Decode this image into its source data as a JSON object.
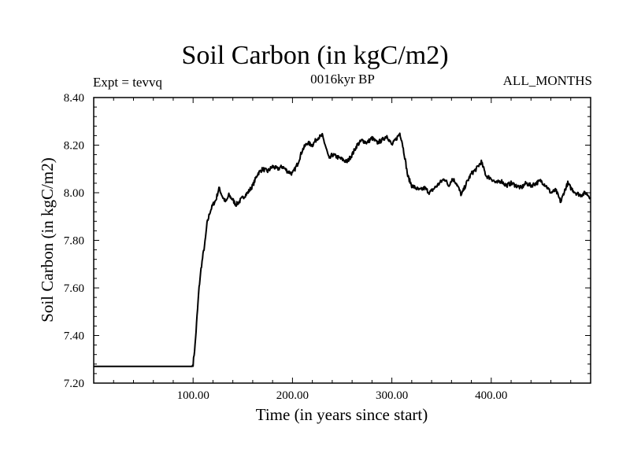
{
  "chart_data": {
    "type": "line",
    "title": "Soil Carbon (in kgC/m2)",
    "subtitle_left": "Expt = tevvq",
    "subtitle_center": "0016kyr BP",
    "subtitle_right": "ALL_MONTHS",
    "xlabel": "Time (in years since start)",
    "ylabel": "Soil Carbon (in kgC/m2)",
    "xlim": [
      0,
      500
    ],
    "ylim": [
      7.2,
      8.4
    ],
    "x_ticks": [
      {
        "value": 100,
        "label": "100.00"
      },
      {
        "value": 200,
        "label": "200.00"
      },
      {
        "value": 300,
        "label": "300.00"
      },
      {
        "value": 400,
        "label": "400.00"
      }
    ],
    "y_ticks": [
      {
        "value": 7.2,
        "label": "7.20"
      },
      {
        "value": 7.4,
        "label": "7.40"
      },
      {
        "value": 7.6,
        "label": "7.60"
      },
      {
        "value": 7.8,
        "label": "7.80"
      },
      {
        "value": 8.0,
        "label": "8.00"
      },
      {
        "value": 8.2,
        "label": "8.20"
      },
      {
        "value": 8.4,
        "label": "8.40"
      }
    ],
    "series": [
      {
        "name": "Soil Carbon",
        "color": "#000000",
        "x": [
          0,
          99,
          100,
          102,
          104,
          106,
          108,
          110,
          112,
          114,
          117,
          120,
          123,
          126,
          128,
          130,
          133,
          136,
          140,
          143,
          146,
          150,
          155,
          160,
          165,
          170,
          175,
          180,
          185,
          190,
          195,
          200,
          205,
          210,
          215,
          220,
          225,
          230,
          233,
          237,
          240,
          245,
          250,
          255,
          260,
          265,
          270,
          275,
          280,
          285,
          290,
          295,
          300,
          305,
          308,
          310,
          313,
          316,
          320,
          324,
          328,
          333,
          338,
          343,
          348,
          353,
          357,
          361,
          365,
          370,
          375,
          380,
          385,
          390,
          395,
          400,
          405,
          410,
          415,
          420,
          425,
          430,
          435,
          440,
          445,
          450,
          455,
          460,
          465,
          470,
          473,
          477,
          480,
          485,
          490,
          495,
          500
        ],
        "values": [
          7.27,
          7.27,
          7.28,
          7.36,
          7.48,
          7.6,
          7.68,
          7.74,
          7.79,
          7.87,
          7.92,
          7.95,
          7.97,
          8.02,
          8.0,
          7.98,
          7.96,
          7.99,
          7.97,
          7.95,
          7.96,
          7.98,
          8.0,
          8.03,
          8.08,
          8.1,
          8.09,
          8.11,
          8.1,
          8.11,
          8.09,
          8.08,
          8.12,
          8.18,
          8.21,
          8.2,
          8.23,
          8.24,
          8.2,
          8.14,
          8.16,
          8.15,
          8.14,
          8.13,
          8.16,
          8.2,
          8.22,
          8.21,
          8.23,
          8.21,
          8.22,
          8.24,
          8.2,
          8.23,
          8.25,
          8.22,
          8.15,
          8.07,
          8.03,
          8.02,
          8.01,
          8.02,
          8.0,
          8.02,
          8.04,
          8.06,
          8.03,
          8.06,
          8.04,
          7.99,
          8.04,
          8.08,
          8.1,
          8.13,
          8.07,
          8.06,
          8.04,
          8.05,
          8.03,
          8.04,
          8.03,
          8.02,
          8.04,
          8.03,
          8.04,
          8.05,
          8.03,
          8.0,
          8.01,
          7.96,
          8.0,
          8.04,
          8.02,
          8.0,
          7.99,
          8.0,
          7.98
        ]
      }
    ]
  }
}
